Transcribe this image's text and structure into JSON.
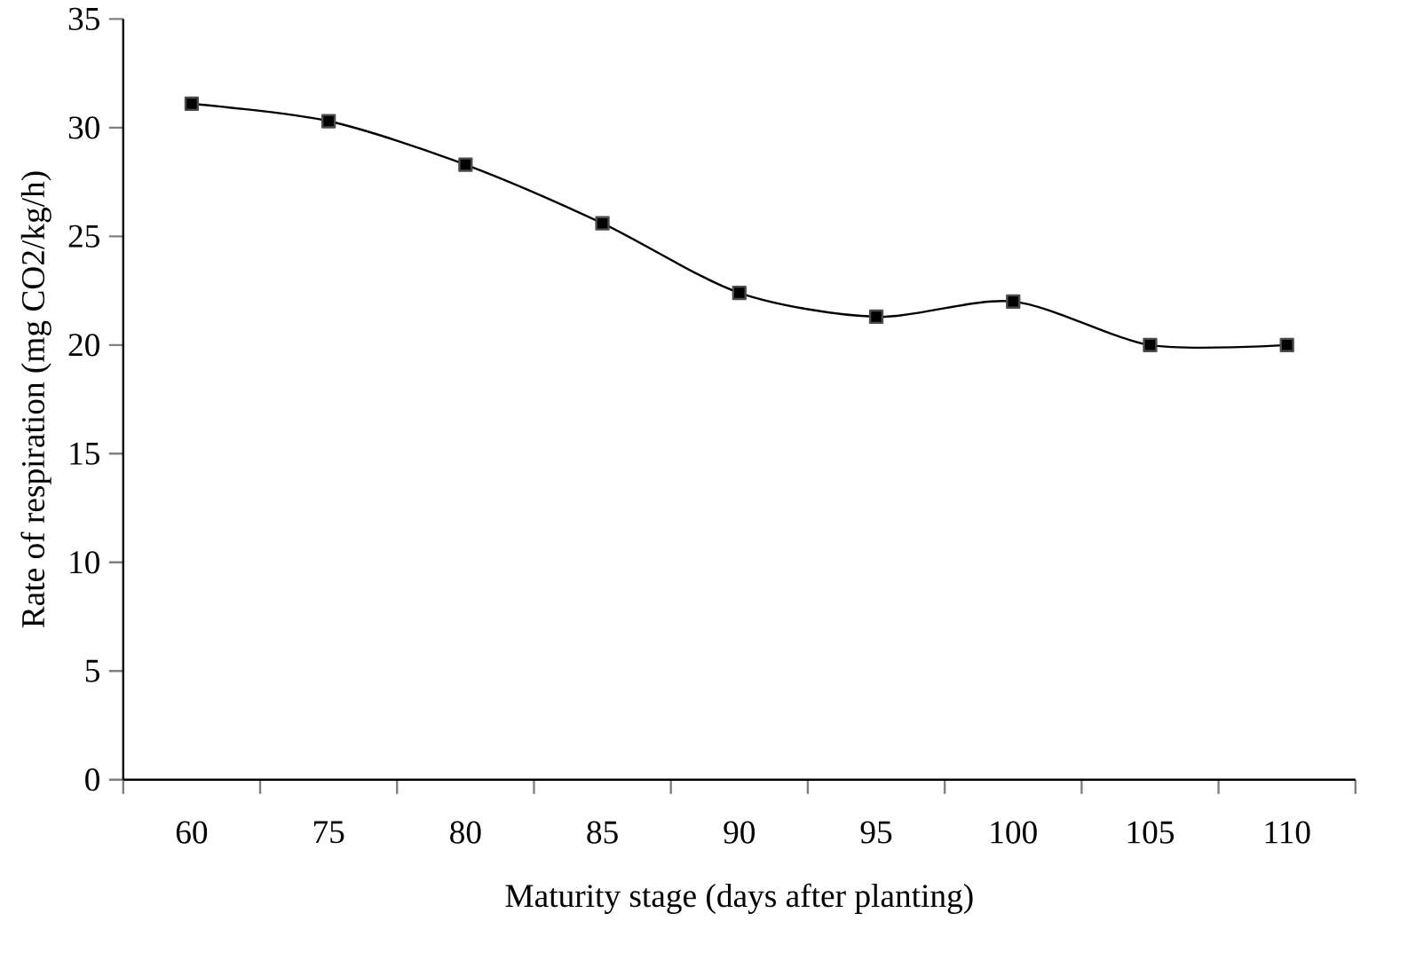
{
  "chart_data": {
    "type": "line",
    "xlabel": "Maturity stage (days after planting)",
    "ylabel": "Rate of respiration (mg CO2/kg/h)",
    "categories": [
      "60",
      "75",
      "80",
      "85",
      "90",
      "95",
      "100",
      "105",
      "110"
    ],
    "series": [
      {
        "color": "#000000",
        "values": [
          31.1,
          30.3,
          28.3,
          25.6,
          22.4,
          21.3,
          22.0,
          20.0,
          20.0
        ]
      }
    ],
    "ylim": [
      0,
      35
    ],
    "yticks": [
      0,
      5,
      10,
      15,
      20,
      25,
      30,
      35
    ],
    "marker": "square",
    "line_style": "solid",
    "grid": false
  }
}
